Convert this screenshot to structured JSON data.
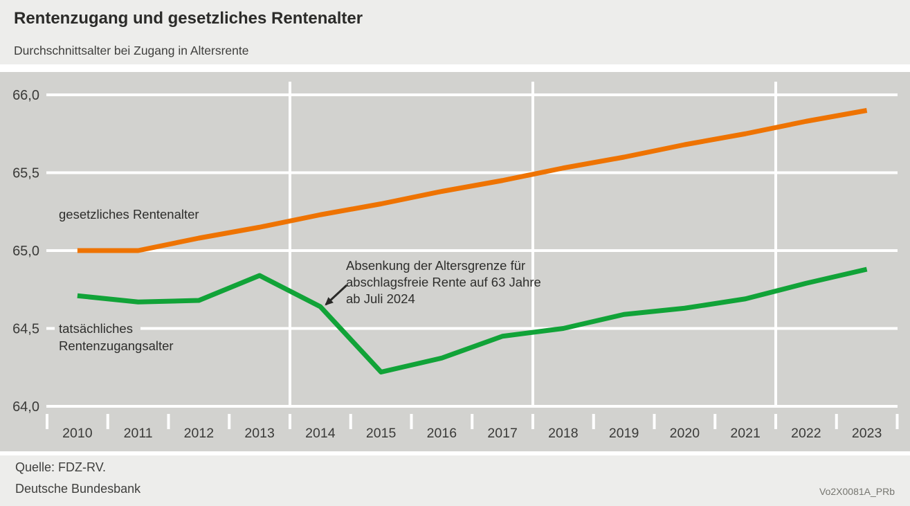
{
  "header": {
    "title": "Rentenzugang und gesetzliches Rentenalter",
    "subtitle": "Durchschnittsalter bei Zugang in Altersrente"
  },
  "footer": {
    "source": "Quelle: FDZ-RV.",
    "institution": "Deutsche Bundesbank",
    "chart_code": "Vo2X0081A_PRb"
  },
  "colors": {
    "statutory_line": "#ee7302",
    "actual_line": "#11a338",
    "plot_background": "#d2d2cf",
    "gridline": "#ffffff",
    "text_dark": "#2e2e2c",
    "axis_text": "#3a3a38",
    "band_background": "#ededeb"
  },
  "chart_data": {
    "type": "line",
    "title": "Rentenzugang und gesetzliches Rentenalter",
    "subtitle": "Durchschnittsalter bei Zugang in Altersrente",
    "x": [
      2010,
      2011,
      2012,
      2013,
      2014,
      2015,
      2016,
      2017,
      2018,
      2019,
      2020,
      2021,
      2022,
      2023
    ],
    "series": [
      {
        "name": "gesetzliches Rentenalter",
        "color": "#ee7302",
        "inline_label_lines": [
          "gesetzliches Rentenalter"
        ],
        "values": [
          65.0,
          65.0,
          65.08,
          65.15,
          65.23,
          65.3,
          65.38,
          65.45,
          65.53,
          65.6,
          65.68,
          65.75,
          65.83,
          65.9
        ]
      },
      {
        "name": "tatsächliches Rentenzugangsalter",
        "color": "#11a338",
        "inline_label_lines": [
          "tatsächliches",
          "Rentenzugangsalter"
        ],
        "values": [
          64.71,
          64.67,
          64.68,
          64.84,
          64.64,
          64.22,
          64.31,
          64.45,
          64.5,
          64.59,
          64.63,
          64.69,
          64.79,
          64.88
        ]
      }
    ],
    "ylim": [
      64.0,
      66.0
    ],
    "yticks": [
      {
        "value": 66.0,
        "label": "66,0"
      },
      {
        "value": 65.5,
        "label": "65,5"
      },
      {
        "value": 65.0,
        "label": "65,0"
      },
      {
        "value": 64.5,
        "label": "64,5"
      },
      {
        "value": 64.0,
        "label": "64,0"
      }
    ],
    "xlabel": "",
    "ylabel": "",
    "grid": true,
    "vertical_separators_after": [
      2013,
      2017,
      2021
    ],
    "legend_position": "inline-labels",
    "annotation": {
      "lines": [
        "Absenkung der Altersgrenze für",
        "abschlagsfreie Rente auf 63 Jahre",
        "ab Juli 2024"
      ],
      "points_to_year": 2014
    }
  }
}
